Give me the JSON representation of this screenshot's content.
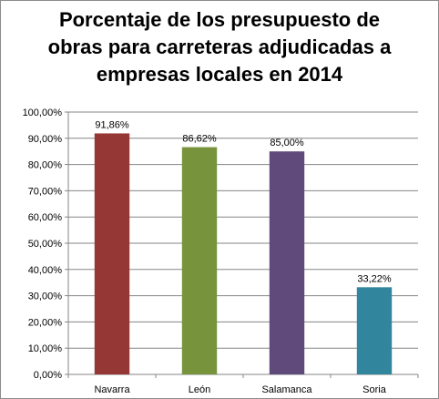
{
  "chart_data": {
    "type": "bar",
    "title": "Porcentaje de los presupuesto de\nobras para carreteras adjudicadas a\nempresas locales en 2014",
    "categories": [
      "Navarra",
      "León",
      "Salamanca",
      "Soria"
    ],
    "values": [
      91.86,
      86.62,
      85.0,
      33.22
    ],
    "data_labels": [
      "91,86%",
      "86,62%",
      "85,00%",
      "33,22%"
    ],
    "y_tick_labels": [
      "0,00%",
      "10,00%",
      "20,00%",
      "30,00%",
      "40,00%",
      "50,00%",
      "60,00%",
      "70,00%",
      "80,00%",
      "90,00%",
      "100,00%"
    ],
    "ylim": [
      0,
      100
    ],
    "grid": true,
    "legend": "none",
    "xlabel": "",
    "ylabel": "",
    "colors": [
      "#953735",
      "#77933c",
      "#604a7b",
      "#31859c"
    ]
  }
}
